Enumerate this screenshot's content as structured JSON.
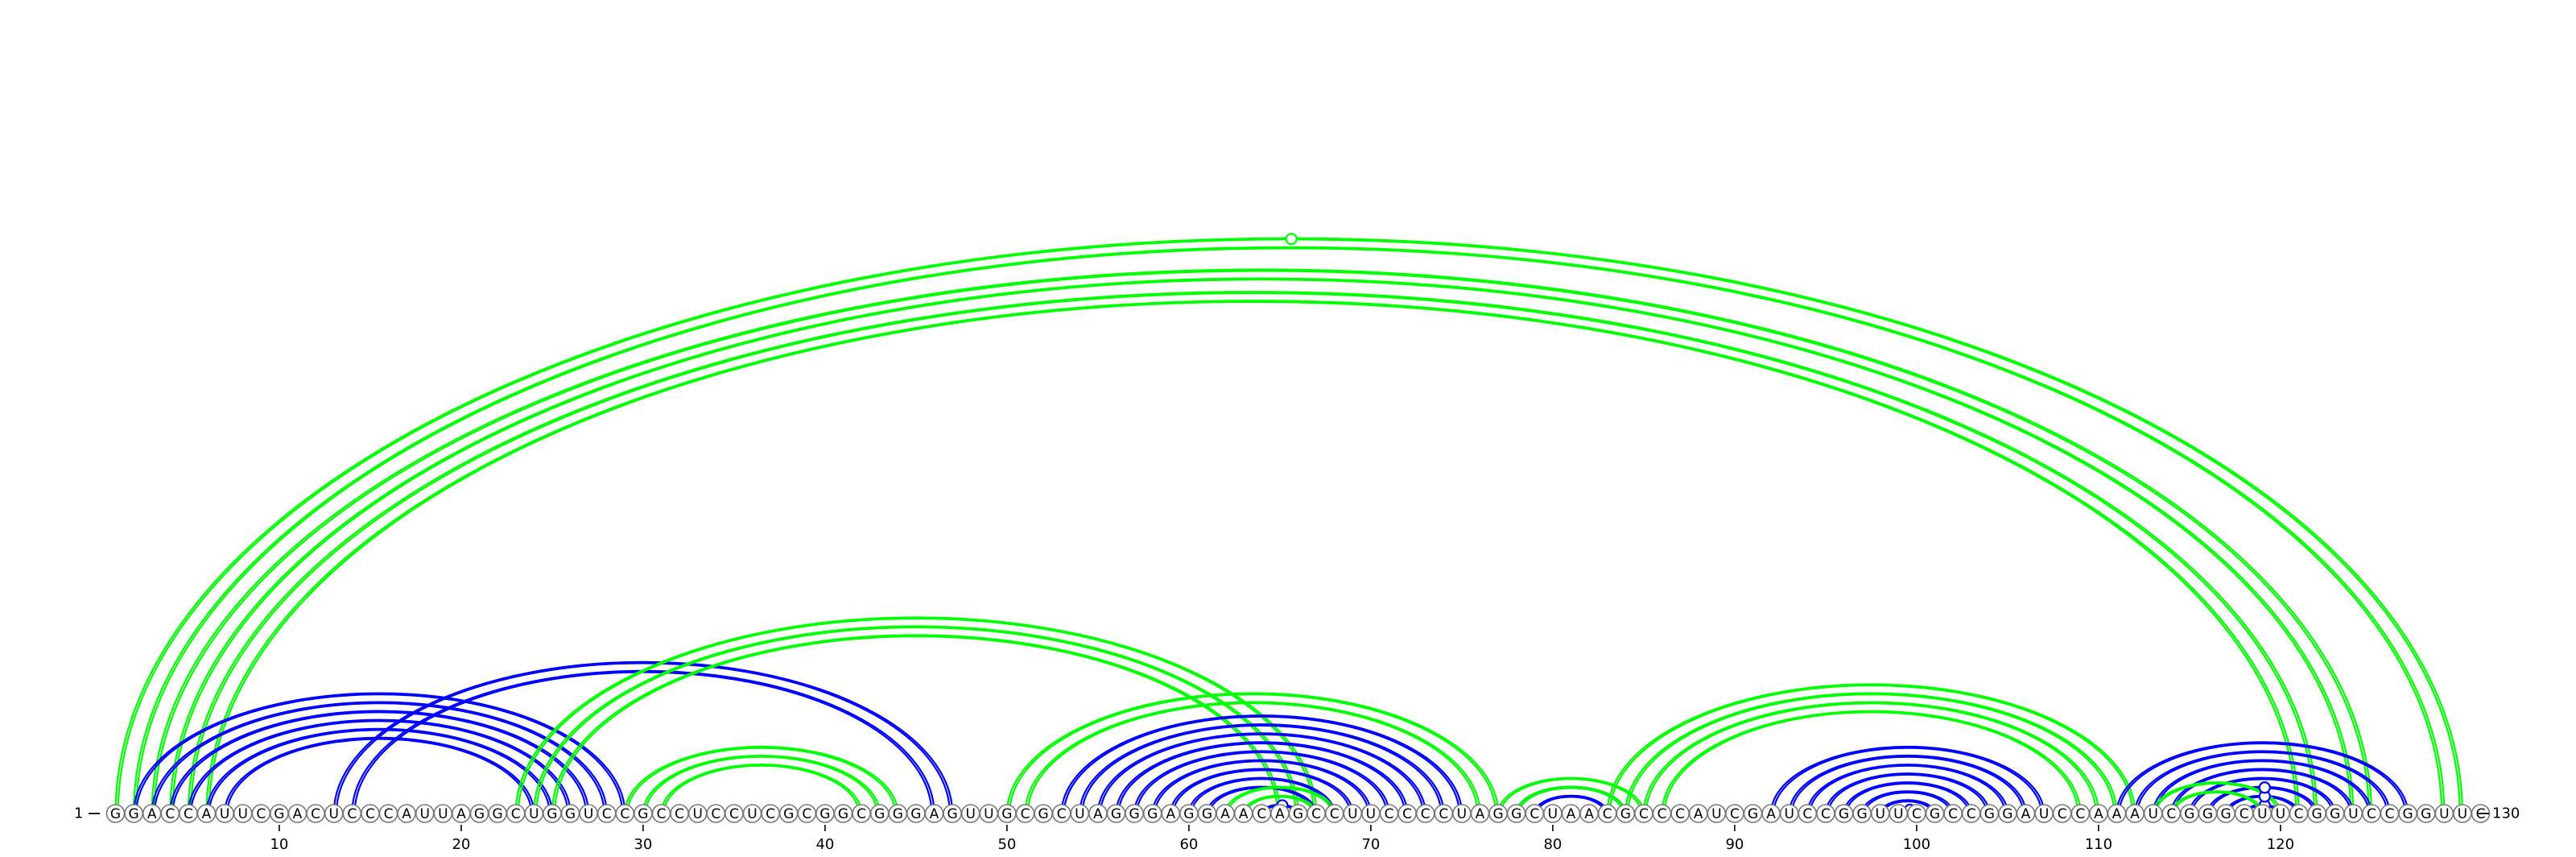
{
  "sequence": "GGACCAUUCGACUCCCAUUAGGCUGGUCCGCCUCCUCGCGGCGGGAGUUGCGCUAGGGAGGAACAGCCUUCCCCUAGGCUAACGCCCAUCGAUCCGGUUCGCCGGAUCCAAAUCGGGCUUCGGUCCGGUUC",
  "start_label": "1",
  "end_label": "130",
  "tick_labels": [
    "10",
    "20",
    "30",
    "40",
    "50",
    "60",
    "70",
    "80",
    "90",
    "100",
    "110",
    "120"
  ],
  "colors": {
    "nested_pairs": "#0000ff",
    "pseudoknot_pairs": "#00ff00"
  },
  "arcs": [
    {
      "color": "green",
      "pairs": [
        [
          1,
          130
        ],
        [
          2,
          129
        ],
        [
          3,
          125
        ],
        [
          4,
          124
        ],
        [
          5,
          122
        ],
        [
          6,
          121
        ]
      ]
    },
    {
      "color": "blue",
      "pairs": [
        [
          2,
          29
        ],
        [
          3,
          28
        ],
        [
          4,
          27
        ],
        [
          5,
          26
        ],
        [
          6,
          25
        ],
        [
          7,
          24
        ]
      ]
    },
    {
      "color": "blue",
      "pairs": [
        [
          13,
          47
        ],
        [
          14,
          46
        ]
      ]
    },
    {
      "color": "green",
      "pairs": [
        [
          23,
          67
        ],
        [
          24,
          66
        ],
        [
          25,
          65
        ]
      ]
    },
    {
      "color": "green",
      "pairs": [
        [
          29,
          44
        ],
        [
          30,
          43
        ],
        [
          31,
          42
        ]
      ]
    },
    {
      "color": "green",
      "pairs": [
        [
          50,
          77
        ],
        [
          51,
          76
        ]
      ]
    },
    {
      "color": "blue",
      "pairs": [
        [
          53,
          75
        ],
        [
          54,
          74
        ],
        [
          55,
          73
        ],
        [
          56,
          72
        ],
        [
          57,
          71
        ],
        [
          58,
          70
        ],
        [
          59,
          69
        ],
        [
          60,
          68
        ],
        [
          61,
          67
        ]
      ]
    },
    {
      "color": "green",
      "pairs": [
        [
          62,
          68
        ],
        [
          63,
          67
        ]
      ]
    },
    {
      "color": "blue",
      "pairs": [
        [
          64,
          66
        ]
      ]
    },
    {
      "color": "blue",
      "pairs": [
        [
          78,
          84
        ],
        [
          79,
          83
        ]
      ]
    },
    {
      "color": "green",
      "pairs": [
        [
          77,
          85
        ],
        [
          78,
          84
        ]
      ]
    },
    {
      "color": "green",
      "pairs": [
        [
          83,
          112
        ],
        [
          84,
          111
        ],
        [
          85,
          110
        ],
        [
          86,
          109
        ]
      ]
    },
    {
      "color": "blue",
      "pairs": [
        [
          92,
          107
        ],
        [
          93,
          106
        ],
        [
          94,
          105
        ],
        [
          95,
          104
        ],
        [
          96,
          103
        ],
        [
          97,
          102
        ],
        [
          98,
          101
        ],
        [
          99,
          100
        ]
      ]
    },
    {
      "color": "blue",
      "pairs": [
        [
          111,
          127
        ],
        [
          112,
          126
        ],
        [
          113,
          125
        ],
        [
          114,
          124
        ],
        [
          115,
          123
        ],
        [
          116,
          122
        ],
        [
          117,
          121
        ],
        [
          118,
          120
        ]
      ]
    },
    {
      "color": "green",
      "pairs": [
        [
          113,
          120
        ],
        [
          114,
          119
        ]
      ]
    }
  ],
  "pair_markers": [
    {
      "color": "green",
      "pair": [
        1,
        130
      ]
    },
    {
      "color": "blue",
      "pair": [
        64,
        66
      ]
    },
    {
      "color": "blue",
      "pair": [
        99,
        100
      ]
    },
    {
      "color": "blue",
      "pair": [
        118,
        120
      ]
    },
    {
      "color": "blue",
      "pair": [
        117,
        121
      ]
    },
    {
      "color": "blue",
      "pair": [
        116,
        122
      ]
    }
  ]
}
